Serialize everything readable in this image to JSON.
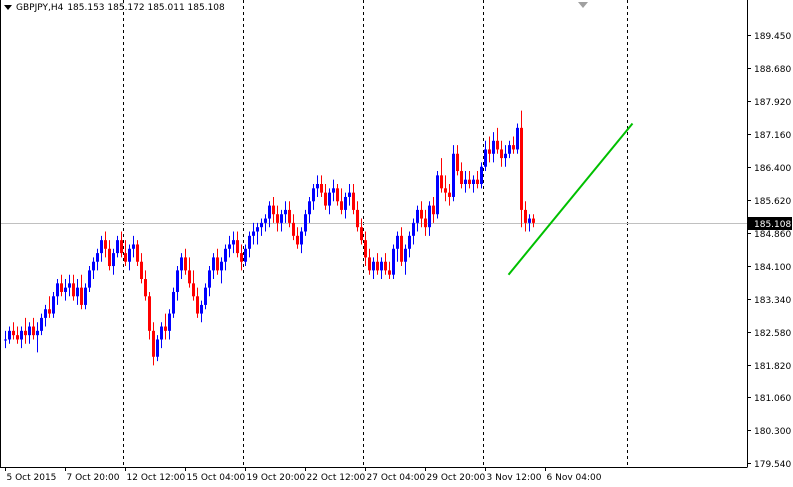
{
  "header": {
    "symbol": "GBPJPY,H4",
    "ohlc": "185.153 185.172 185.011 185.108"
  },
  "current_price_label": "185.108",
  "chart_data": {
    "type": "candlestick",
    "colors": {
      "up": "#0000ff",
      "down": "#ff0000",
      "trendline": "#00c000",
      "grid": "#000000",
      "current_line": "#c0c0c0"
    },
    "y_ticks": [
      "189.450",
      "188.680",
      "187.920",
      "187.160",
      "186.400",
      "185.620",
      "184.860",
      "184.100",
      "183.340",
      "182.580",
      "181.820",
      "181.060",
      "180.300",
      "179.540"
    ],
    "ylim": [
      179.54,
      190.15
    ],
    "x_tick_labels": [
      {
        "label": "5 Oct 2015",
        "index": 0
      },
      {
        "label": "7 Oct 20:00",
        "index": 15
      },
      {
        "label": "12 Oct 12:00",
        "index": 30
      },
      {
        "label": "15 Oct 04:00",
        "index": 45
      },
      {
        "label": "19 Oct 20:00",
        "index": 60
      },
      {
        "label": "22 Oct 12:00",
        "index": 75
      },
      {
        "label": "27 Oct 04:00",
        "index": 90
      },
      {
        "label": "29 Oct 20:00",
        "index": 105
      },
      {
        "label": "3 Nov 12:00",
        "index": 120
      },
      {
        "label": "6 Nov 04:00",
        "index": 135
      }
    ],
    "separators_at_index": [
      29.5,
      59.5,
      89.5,
      119.5,
      155.5
    ],
    "ohlc": [
      [
        182.4,
        182.6,
        182.2,
        182.4
      ],
      [
        182.4,
        182.7,
        182.3,
        182.6
      ],
      [
        182.6,
        182.8,
        182.4,
        182.5
      ],
      [
        182.5,
        182.7,
        182.3,
        182.4
      ],
      [
        182.4,
        182.7,
        182.2,
        182.6
      ],
      [
        182.6,
        182.9,
        182.3,
        182.5
      ],
      [
        182.5,
        182.8,
        182.3,
        182.7
      ],
      [
        182.7,
        182.9,
        182.4,
        182.5
      ],
      [
        182.5,
        182.8,
        182.1,
        182.6
      ],
      [
        182.6,
        183.0,
        182.5,
        182.9
      ],
      [
        182.9,
        183.2,
        182.7,
        183.1
      ],
      [
        183.1,
        183.4,
        182.9,
        183.0
      ],
      [
        183.0,
        183.5,
        182.9,
        183.4
      ],
      [
        183.4,
        183.8,
        183.2,
        183.7
      ],
      [
        183.7,
        183.9,
        183.4,
        183.5
      ],
      [
        183.5,
        183.8,
        183.3,
        183.6
      ],
      [
        183.6,
        183.9,
        183.4,
        183.7
      ],
      [
        183.7,
        183.9,
        183.3,
        183.4
      ],
      [
        183.4,
        183.8,
        183.2,
        183.6
      ],
      [
        183.6,
        183.9,
        183.1,
        183.2
      ],
      [
        183.2,
        183.7,
        183.1,
        183.6
      ],
      [
        183.6,
        184.1,
        183.5,
        184.0
      ],
      [
        184.0,
        184.3,
        183.8,
        184.2
      ],
      [
        184.2,
        184.5,
        184.0,
        184.4
      ],
      [
        184.4,
        184.8,
        184.2,
        184.7
      ],
      [
        184.7,
        184.9,
        184.3,
        184.5
      ],
      [
        184.5,
        184.7,
        184.0,
        184.1
      ],
      [
        184.1,
        184.5,
        183.9,
        184.4
      ],
      [
        184.4,
        184.8,
        184.3,
        184.7
      ],
      [
        184.7,
        184.9,
        184.3,
        184.4
      ],
      [
        184.4,
        184.7,
        184.1,
        184.2
      ],
      [
        184.2,
        184.6,
        184.0,
        184.5
      ],
      [
        184.5,
        184.8,
        184.3,
        184.6
      ],
      [
        184.6,
        184.7,
        184.1,
        184.2
      ],
      [
        184.2,
        184.4,
        183.7,
        183.8
      ],
      [
        183.8,
        184.0,
        183.3,
        183.4
      ],
      [
        183.4,
        183.5,
        182.4,
        182.6
      ],
      [
        182.6,
        182.8,
        181.8,
        182.0
      ],
      [
        182.0,
        182.5,
        181.9,
        182.4
      ],
      [
        182.4,
        182.8,
        182.2,
        182.7
      ],
      [
        182.7,
        183.0,
        182.4,
        182.6
      ],
      [
        182.6,
        183.1,
        182.4,
        183.0
      ],
      [
        183.0,
        183.6,
        182.9,
        183.5
      ],
      [
        183.5,
        184.1,
        183.3,
        184.0
      ],
      [
        184.0,
        184.4,
        183.8,
        184.3
      ],
      [
        184.3,
        184.5,
        183.9,
        184.0
      ],
      [
        184.0,
        184.3,
        183.6,
        183.7
      ],
      [
        183.7,
        184.0,
        183.3,
        183.4
      ],
      [
        183.4,
        183.6,
        182.9,
        183.0
      ],
      [
        183.0,
        183.3,
        182.8,
        183.2
      ],
      [
        183.2,
        183.7,
        183.1,
        183.6
      ],
      [
        183.6,
        184.1,
        183.4,
        184.0
      ],
      [
        184.0,
        184.4,
        183.8,
        184.3
      ],
      [
        184.3,
        184.5,
        183.9,
        184.0
      ],
      [
        184.0,
        184.3,
        183.7,
        184.2
      ],
      [
        184.2,
        184.6,
        184.0,
        184.5
      ],
      [
        184.5,
        184.8,
        184.3,
        184.6
      ],
      [
        184.6,
        184.9,
        184.4,
        184.7
      ],
      [
        184.7,
        184.9,
        184.3,
        184.4
      ],
      [
        184.4,
        184.6,
        184.0,
        184.2
      ],
      [
        184.2,
        184.6,
        184.1,
        184.5
      ],
      [
        184.5,
        184.9,
        184.3,
        184.8
      ],
      [
        184.8,
        185.1,
        184.6,
        184.9
      ],
      [
        184.9,
        185.1,
        184.6,
        185.0
      ],
      [
        185.0,
        185.2,
        184.8,
        185.1
      ],
      [
        185.1,
        185.3,
        184.9,
        185.2
      ],
      [
        185.2,
        185.6,
        185.0,
        185.5
      ],
      [
        185.5,
        185.7,
        185.1,
        185.3
      ],
      [
        185.3,
        185.5,
        184.9,
        185.1
      ],
      [
        185.1,
        185.4,
        184.9,
        185.3
      ],
      [
        185.3,
        185.6,
        185.1,
        185.4
      ],
      [
        185.4,
        185.6,
        185.0,
        185.1
      ],
      [
        185.1,
        185.3,
        184.7,
        184.8
      ],
      [
        184.8,
        185.0,
        184.5,
        184.6
      ],
      [
        184.6,
        185.0,
        184.4,
        184.9
      ],
      [
        184.9,
        185.4,
        184.8,
        185.3
      ],
      [
        185.3,
        185.7,
        185.1,
        185.6
      ],
      [
        185.6,
        186.0,
        185.4,
        185.9
      ],
      [
        185.9,
        186.2,
        185.7,
        186.0
      ],
      [
        186.0,
        186.2,
        185.7,
        185.8
      ],
      [
        185.8,
        186.0,
        185.4,
        185.5
      ],
      [
        185.5,
        185.9,
        185.3,
        185.8
      ],
      [
        185.8,
        186.1,
        185.6,
        185.9
      ],
      [
        185.9,
        186.0,
        185.5,
        185.6
      ],
      [
        185.6,
        185.9,
        185.3,
        185.4
      ],
      [
        185.4,
        185.8,
        185.2,
        185.7
      ],
      [
        185.7,
        186.0,
        185.5,
        185.8
      ],
      [
        185.8,
        186.0,
        185.3,
        185.4
      ],
      [
        185.4,
        185.6,
        184.9,
        185.0
      ],
      [
        185.0,
        185.2,
        184.6,
        184.7
      ],
      [
        184.7,
        184.9,
        184.1,
        184.3
      ],
      [
        184.3,
        184.5,
        183.9,
        184.0
      ],
      [
        184.0,
        184.3,
        183.8,
        184.2
      ],
      [
        184.2,
        184.4,
        183.9,
        184.0
      ],
      [
        184.0,
        184.3,
        183.8,
        184.2
      ],
      [
        184.2,
        184.4,
        183.9,
        184.0
      ],
      [
        184.0,
        184.2,
        183.8,
        183.9
      ],
      [
        183.9,
        184.6,
        183.8,
        184.5
      ],
      [
        184.5,
        184.9,
        184.2,
        184.8
      ],
      [
        184.8,
        185.0,
        184.1,
        184.2
      ],
      [
        184.2,
        184.6,
        183.9,
        184.5
      ],
      [
        184.5,
        184.9,
        184.3,
        184.8
      ],
      [
        184.8,
        185.2,
        184.6,
        185.1
      ],
      [
        185.1,
        185.5,
        184.9,
        185.4
      ],
      [
        185.4,
        185.6,
        185.0,
        185.2
      ],
      [
        185.2,
        185.4,
        184.8,
        185.0
      ],
      [
        185.0,
        185.6,
        184.8,
        185.5
      ],
      [
        185.5,
        185.7,
        185.1,
        185.3
      ],
      [
        185.3,
        186.3,
        185.2,
        186.2
      ],
      [
        186.2,
        186.6,
        185.8,
        185.9
      ],
      [
        185.9,
        186.2,
        185.6,
        185.8
      ],
      [
        185.8,
        186.0,
        185.5,
        185.7
      ],
      [
        185.7,
        186.9,
        185.6,
        186.7
      ],
      [
        186.7,
        186.9,
        186.2,
        186.3
      ],
      [
        186.3,
        186.5,
        185.9,
        186.0
      ],
      [
        186.0,
        186.3,
        185.8,
        186.1
      ],
      [
        186.1,
        186.3,
        185.9,
        186.0
      ],
      [
        186.0,
        186.2,
        185.8,
        186.1
      ],
      [
        186.1,
        186.3,
        185.9,
        186.0
      ],
      [
        186.0,
        186.5,
        185.9,
        186.4
      ],
      [
        186.4,
        187.0,
        186.3,
        186.8
      ],
      [
        186.8,
        187.1,
        186.5,
        186.7
      ],
      [
        186.7,
        187.2,
        186.5,
        187.0
      ],
      [
        187.0,
        187.3,
        186.7,
        186.8
      ],
      [
        186.8,
        187.0,
        186.4,
        186.6
      ],
      [
        186.6,
        186.9,
        186.4,
        186.7
      ],
      [
        186.7,
        187.0,
        186.6,
        186.9
      ],
      [
        186.9,
        187.1,
        186.7,
        186.8
      ],
      [
        186.8,
        187.4,
        186.7,
        187.3
      ],
      [
        187.3,
        187.7,
        185.0,
        185.4
      ],
      [
        185.4,
        185.6,
        184.9,
        185.1
      ],
      [
        185.1,
        185.3,
        184.9,
        185.2
      ],
      [
        185.2,
        185.3,
        185.0,
        185.1
      ]
    ],
    "trendline": {
      "from": [
        126,
        183.9
      ],
      "to": [
        157,
        187.4
      ]
    }
  }
}
